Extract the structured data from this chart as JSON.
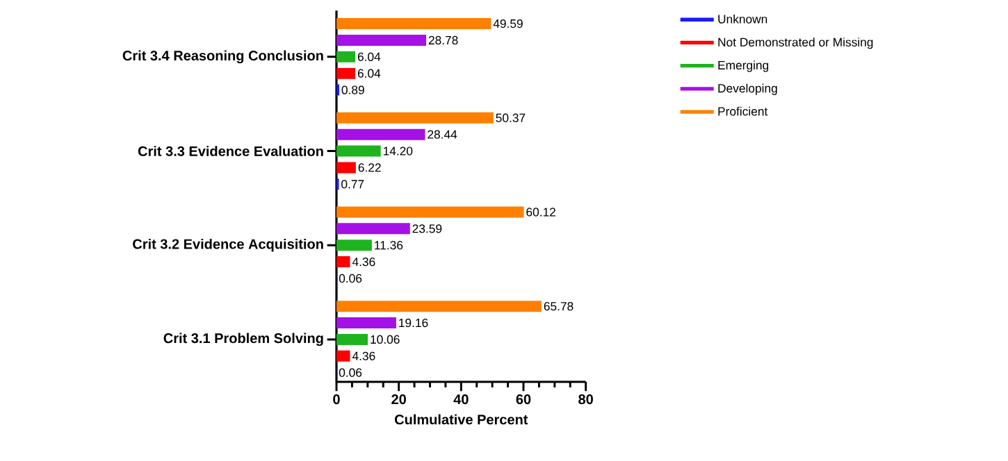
{
  "chart_data": {
    "type": "bar",
    "orientation": "horizontal",
    "xlabel": "Culmulative Percent",
    "categories": [
      "Crit 3.4 Reasoning Conclusion",
      "Crit 3.3 Evidence Evaluation",
      "Crit 3.2 Evidence Acquisition",
      "Crit 3.1 Problem Solving"
    ],
    "series": [
      {
        "name": "Unknown",
        "color": "#1a1aff",
        "values": [
          0.89,
          0.77,
          0.06,
          0.06
        ],
        "value_labels": [
          "0.89",
          "0.77",
          "0.06",
          "0.06"
        ]
      },
      {
        "name": "Not Demonstrated or Missing",
        "color": "#ff0000",
        "values": [
          6.04,
          6.22,
          4.36,
          4.36
        ],
        "value_labels": [
          "6.04",
          "6.22",
          "4.36",
          "4.36"
        ]
      },
      {
        "name": "Emerging",
        "color": "#1fb41f",
        "values": [
          6.04,
          14.2,
          11.36,
          10.06
        ],
        "value_labels": [
          "6.04",
          "14.20",
          "11.36",
          "10.06"
        ]
      },
      {
        "name": "Developing",
        "color": "#a510e6",
        "values": [
          28.78,
          28.44,
          23.59,
          19.16
        ],
        "value_labels": [
          "28.78",
          "28.44",
          "23.59",
          "19.16"
        ]
      },
      {
        "name": "Proficient",
        "color": "#ff8000",
        "values": [
          49.59,
          50.37,
          60.12,
          65.78
        ],
        "value_labels": [
          "49.59",
          "50.37",
          "60.12",
          "65.78"
        ]
      }
    ],
    "xlim": [
      0,
      80
    ],
    "xticks": [
      0,
      20,
      40,
      60,
      80
    ],
    "grid": false,
    "legend": "top right"
  }
}
